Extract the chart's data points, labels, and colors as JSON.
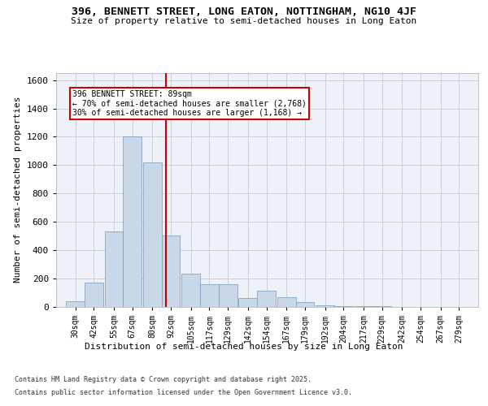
{
  "title1": "396, BENNETT STREET, LONG EATON, NOTTINGHAM, NG10 4JF",
  "title2": "Size of property relative to semi-detached houses in Long Eaton",
  "xlabel": "Distribution of semi-detached houses by size in Long Eaton",
  "ylabel": "Number of semi-detached properties",
  "categories": [
    "30sqm",
    "42sqm",
    "55sqm",
    "67sqm",
    "80sqm",
    "92sqm",
    "105sqm",
    "117sqm",
    "129sqm",
    "142sqm",
    "154sqm",
    "167sqm",
    "179sqm",
    "192sqm",
    "204sqm",
    "217sqm",
    "229sqm",
    "242sqm",
    "254sqm",
    "267sqm",
    "279sqm"
  ],
  "bar_edges": [
    30,
    42,
    55,
    67,
    80,
    92,
    105,
    117,
    129,
    142,
    154,
    167,
    179,
    192,
    204,
    217,
    229,
    242,
    254,
    267,
    279
  ],
  "bar_heights": [
    40,
    170,
    530,
    1200,
    1020,
    500,
    230,
    160,
    160,
    60,
    110,
    65,
    30,
    10,
    4,
    2,
    1,
    0,
    0,
    0,
    0
  ],
  "bar_color": "#c8d8e8",
  "bar_edge_color": "#7799bb",
  "property_sqm": 89,
  "property_line_color": "#cc0000",
  "annotation_text": "396 BENNETT STREET: 89sqm\n← 70% of semi-detached houses are smaller (2,768)\n30% of semi-detached houses are larger (1,168) →",
  "annotation_box_color": "#ffffff",
  "annotation_border_color": "#cc0000",
  "ylim": [
    0,
    1650
  ],
  "yticks": [
    0,
    200,
    400,
    600,
    800,
    1000,
    1200,
    1400,
    1600
  ],
  "grid_color": "#c8d0dc",
  "bg_color": "#eef2f8",
  "footnote1": "Contains HM Land Registry data © Crown copyright and database right 2025.",
  "footnote2": "Contains public sector information licensed under the Open Government Licence v3.0."
}
